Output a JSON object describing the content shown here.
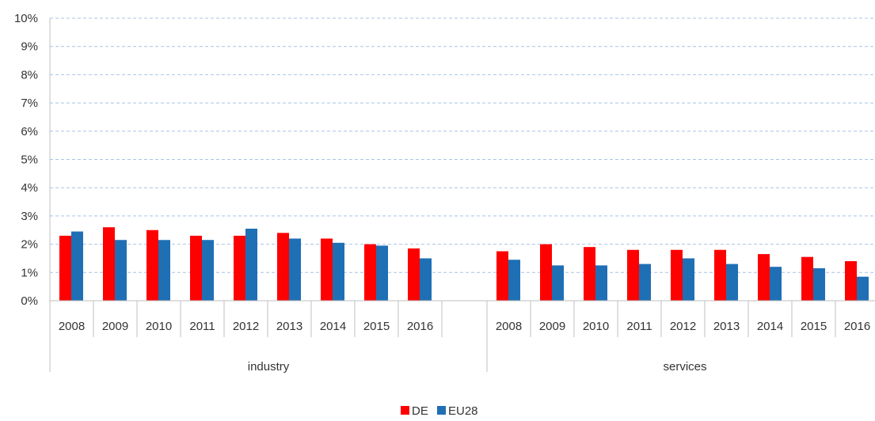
{
  "chart_data": {
    "type": "bar",
    "groups": [
      {
        "label": "industry",
        "categories": [
          "2008",
          "2009",
          "2010",
          "2011",
          "2012",
          "2013",
          "2014",
          "2015",
          "2016"
        ],
        "series": [
          {
            "name": "DE",
            "values": [
              2.3,
              2.6,
              2.5,
              2.3,
              2.3,
              2.4,
              2.2,
              2.0,
              1.85
            ]
          },
          {
            "name": "EU28",
            "values": [
              2.45,
              2.15,
              2.15,
              2.15,
              2.55,
              2.2,
              2.05,
              1.95,
              1.5
            ]
          }
        ]
      },
      {
        "label": "services",
        "categories": [
          "2008",
          "2009",
          "2010",
          "2011",
          "2012",
          "2013",
          "2014",
          "2015",
          "2016"
        ],
        "series": [
          {
            "name": "DE",
            "values": [
              1.75,
              2.0,
              1.9,
              1.8,
              1.8,
              1.8,
              1.65,
              1.55,
              1.4
            ]
          },
          {
            "name": "EU28",
            "values": [
              1.45,
              1.25,
              1.25,
              1.3,
              1.5,
              1.3,
              1.2,
              1.15,
              0.85
            ]
          }
        ]
      }
    ],
    "y_ticks": [
      "0%",
      "1%",
      "2%",
      "3%",
      "4%",
      "5%",
      "6%",
      "7%",
      "8%",
      "9%",
      "10%"
    ],
    "ylim": [
      0,
      10
    ],
    "y_unit": "%",
    "grid": "horizontal dashed",
    "legend_position": "bottom-center",
    "colors": {
      "DE": "#ff0000",
      "EU28": "#1f6fb5",
      "grid": "#a9c4e4",
      "axis": "#bfbfbf"
    }
  }
}
